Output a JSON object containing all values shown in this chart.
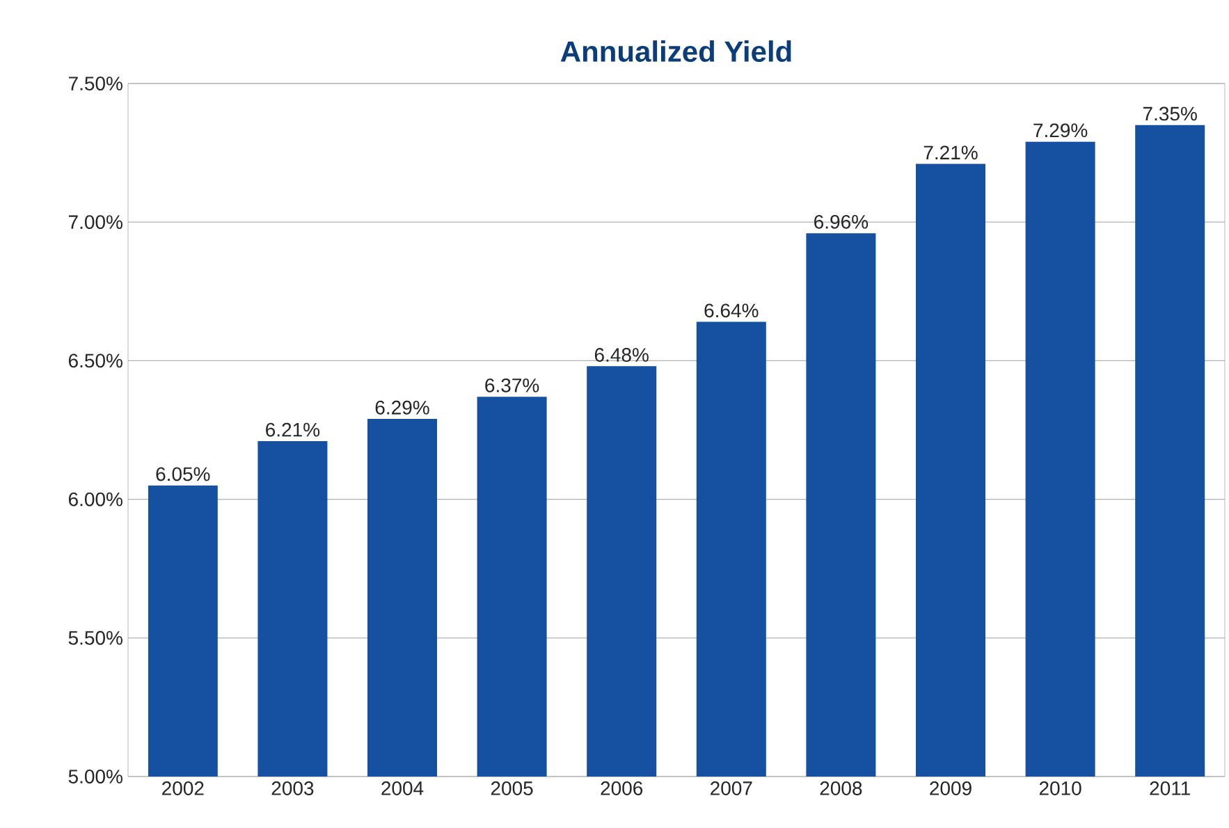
{
  "chart_data": {
    "type": "bar",
    "title": "Annualized Yield",
    "categories": [
      "2002",
      "2003",
      "2004",
      "2005",
      "2006",
      "2007",
      "2008",
      "2009",
      "2010",
      "2011"
    ],
    "values": [
      6.05,
      6.21,
      6.29,
      6.37,
      6.48,
      6.64,
      6.96,
      7.21,
      7.29,
      7.35
    ],
    "value_labels": [
      "6.05%",
      "6.21%",
      "6.29%",
      "6.37%",
      "6.48%",
      "6.64%",
      "6.96%",
      "7.21%",
      "7.29%",
      "7.35%"
    ],
    "color": "#1650a0",
    "ylim": [
      5,
      7.5
    ],
    "yticks": [
      {
        "value": 5,
        "label": "5.00%"
      },
      {
        "value": 5.5,
        "label": "5.50%"
      },
      {
        "value": 6,
        "label": "6.00%"
      },
      {
        "value": 6.5,
        "label": "6.50%"
      },
      {
        "value": 7,
        "label": "7.00%"
      },
      {
        "value": 7.5,
        "label": "7.50%"
      }
    ],
    "grid": "y"
  }
}
